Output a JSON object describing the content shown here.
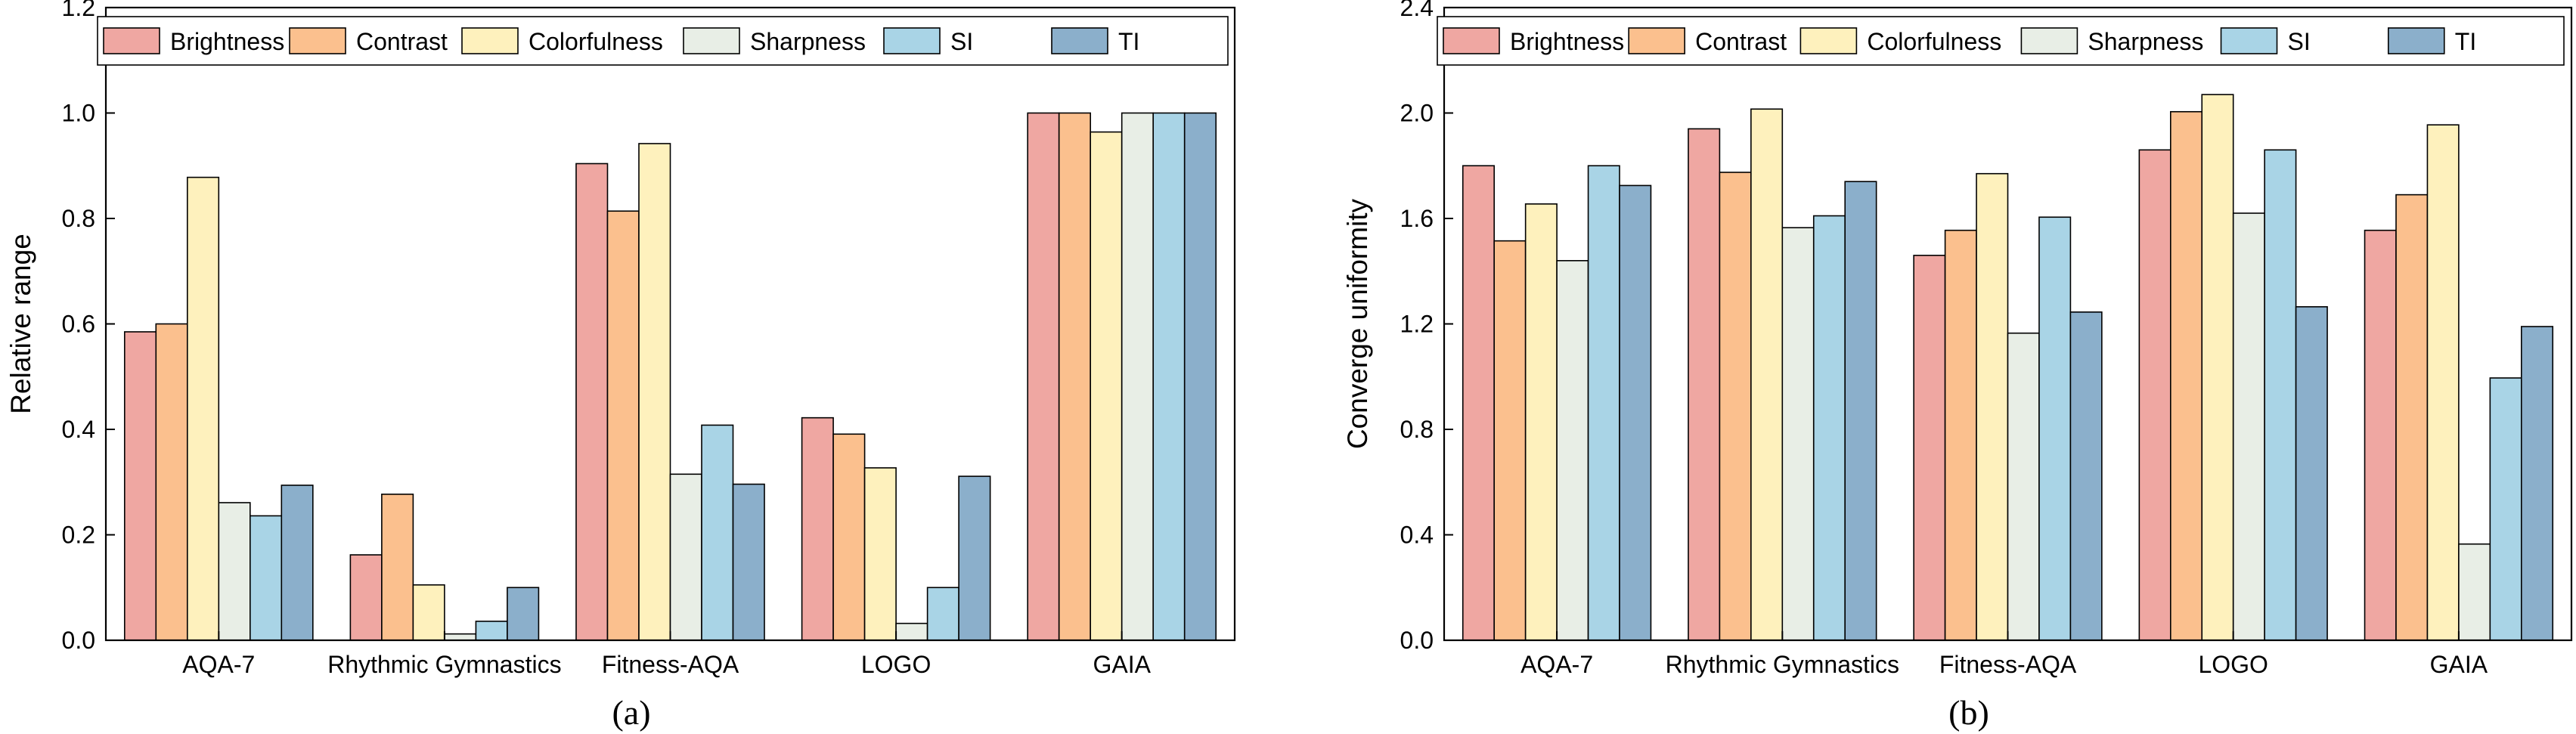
{
  "palette": {
    "Brightness": "#EFA7A2",
    "Contrast": "#FBC08E",
    "Colorfulness": "#FEF1BD",
    "Sharpness": "#E8EEE6",
    "SI": "#A9D4E6",
    "TI": "#8BAFCB",
    "edge": "#000000"
  },
  "chart_data": [
    {
      "type": "bar",
      "panel_label": "(a)",
      "title": "",
      "xlabel": "",
      "ylabel": "Relative range",
      "ylim": [
        0,
        1.2
      ],
      "yticks": [
        0.0,
        0.2,
        0.4,
        0.6,
        0.8,
        1.0,
        1.2
      ],
      "ytick_labels": [
        "0.0",
        "0.2",
        "0.4",
        "0.6",
        "0.8",
        "1.0",
        "1.2"
      ],
      "grid": false,
      "legend_position": "top",
      "categories": [
        "AQA-7",
        "Rhythmic Gymnastics",
        "Fitness-AQA",
        "LOGO",
        "GAIA"
      ],
      "series": [
        {
          "name": "Brightness",
          "values": [
            0.585,
            0.162,
            0.904,
            0.422,
            1.0
          ]
        },
        {
          "name": "Contrast",
          "values": [
            0.6,
            0.277,
            0.814,
            0.391,
            1.0
          ]
        },
        {
          "name": "Colorfulness",
          "values": [
            0.878,
            0.105,
            0.942,
            0.327,
            0.964
          ]
        },
        {
          "name": "Sharpness",
          "values": [
            0.261,
            0.012,
            0.315,
            0.032,
            1.0
          ]
        },
        {
          "name": "SI",
          "values": [
            0.236,
            0.036,
            0.408,
            0.1,
            1.0
          ]
        },
        {
          "name": "TI",
          "values": [
            0.294,
            0.1,
            0.296,
            0.311,
            1.0
          ]
        }
      ]
    },
    {
      "type": "bar",
      "panel_label": "(b)",
      "title": "",
      "xlabel": "",
      "ylabel": "Converge uniformity",
      "ylim": [
        0,
        2.4
      ],
      "yticks": [
        0.0,
        0.4,
        0.8,
        1.2,
        1.6,
        2.0,
        2.4
      ],
      "ytick_labels": [
        "0.0",
        "0.4",
        "0.8",
        "1.2",
        "1.6",
        "2.0",
        "2.4"
      ],
      "grid": false,
      "legend_position": "top",
      "categories": [
        "AQA-7",
        "Rhythmic Gymnastics",
        "Fitness-AQA",
        "LOGO",
        "GAIA"
      ],
      "series": [
        {
          "name": "Brightness",
          "values": [
            1.8,
            1.94,
            1.46,
            1.86,
            1.555
          ]
        },
        {
          "name": "Contrast",
          "values": [
            1.515,
            1.775,
            1.555,
            2.005,
            1.69
          ]
        },
        {
          "name": "Colorfulness",
          "values": [
            1.655,
            2.015,
            1.77,
            2.07,
            1.955
          ]
        },
        {
          "name": "Sharpness",
          "values": [
            1.44,
            1.565,
            1.165,
            1.62,
            0.365
          ]
        },
        {
          "name": "SI",
          "values": [
            1.8,
            1.61,
            1.605,
            1.86,
            0.995
          ]
        },
        {
          "name": "TI",
          "values": [
            1.725,
            1.74,
            1.245,
            1.265,
            1.19
          ]
        }
      ]
    }
  ]
}
